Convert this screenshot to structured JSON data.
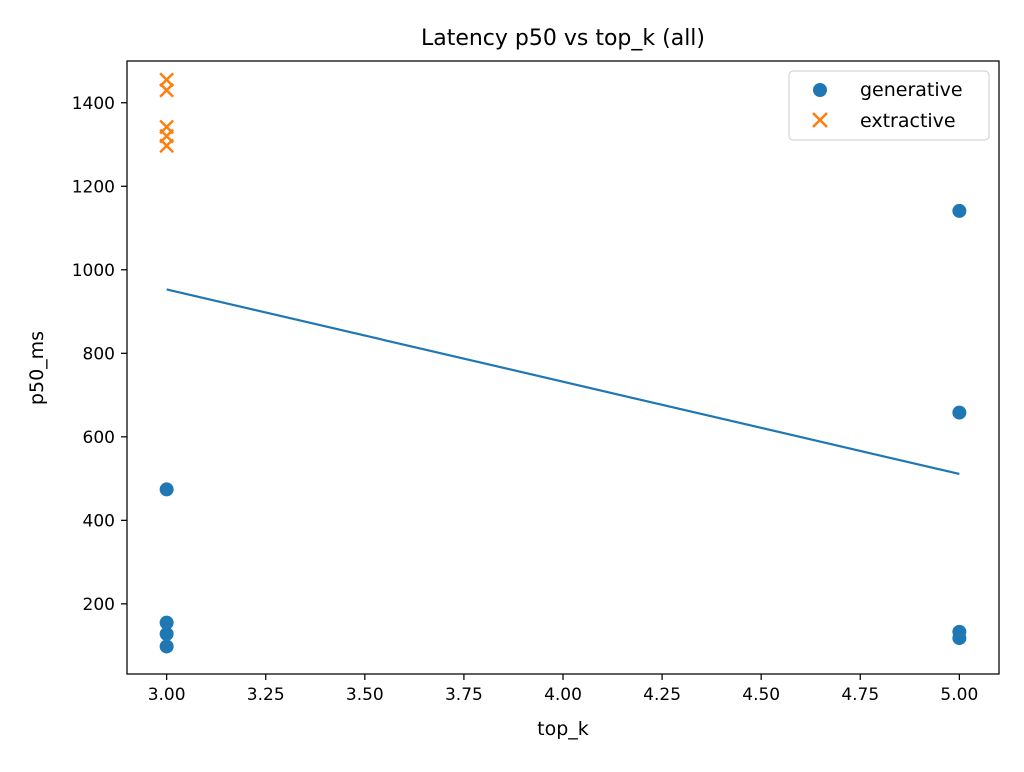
{
  "chart_data": {
    "type": "scatter",
    "title": "Latency p50 vs top_k (all)",
    "xlabel": "top_k",
    "ylabel": "p50_ms",
    "xlim": [
      2.9,
      5.1
    ],
    "ylim": [
      32,
      1500
    ],
    "x_ticks": [
      3.0,
      3.25,
      3.5,
      3.75,
      4.0,
      4.25,
      4.5,
      4.75,
      5.0
    ],
    "x_tick_labels": [
      "3.00",
      "3.25",
      "3.50",
      "3.75",
      "4.00",
      "4.25",
      "4.50",
      "4.75",
      "5.00"
    ],
    "y_ticks": [
      200,
      400,
      600,
      800,
      1000,
      1200,
      1400
    ],
    "y_tick_labels": [
      "200",
      "400",
      "600",
      "800",
      "1000",
      "1200",
      "1400"
    ],
    "grid": false,
    "legend_position": "top-right",
    "series": [
      {
        "name": "generative",
        "marker": "circle",
        "color": "#1f77b4",
        "points": [
          {
            "x": 3,
            "y": 98
          },
          {
            "x": 3,
            "y": 128
          },
          {
            "x": 3,
            "y": 155
          },
          {
            "x": 3,
            "y": 474
          },
          {
            "x": 5,
            "y": 118
          },
          {
            "x": 5,
            "y": 133
          },
          {
            "x": 5,
            "y": 658
          },
          {
            "x": 5,
            "y": 1141
          }
        ]
      },
      {
        "name": "extractive",
        "marker": "x",
        "color": "#ff7f0e",
        "points": [
          {
            "x": 3,
            "y": 1297
          },
          {
            "x": 3,
            "y": 1320
          },
          {
            "x": 3,
            "y": 1342
          },
          {
            "x": 3,
            "y": 1430
          },
          {
            "x": 3,
            "y": 1455
          }
        ]
      }
    ],
    "trend_line": {
      "color": "#1f77b4",
      "points": [
        {
          "x": 3,
          "y": 953
        },
        {
          "x": 5,
          "y": 511
        }
      ]
    }
  }
}
